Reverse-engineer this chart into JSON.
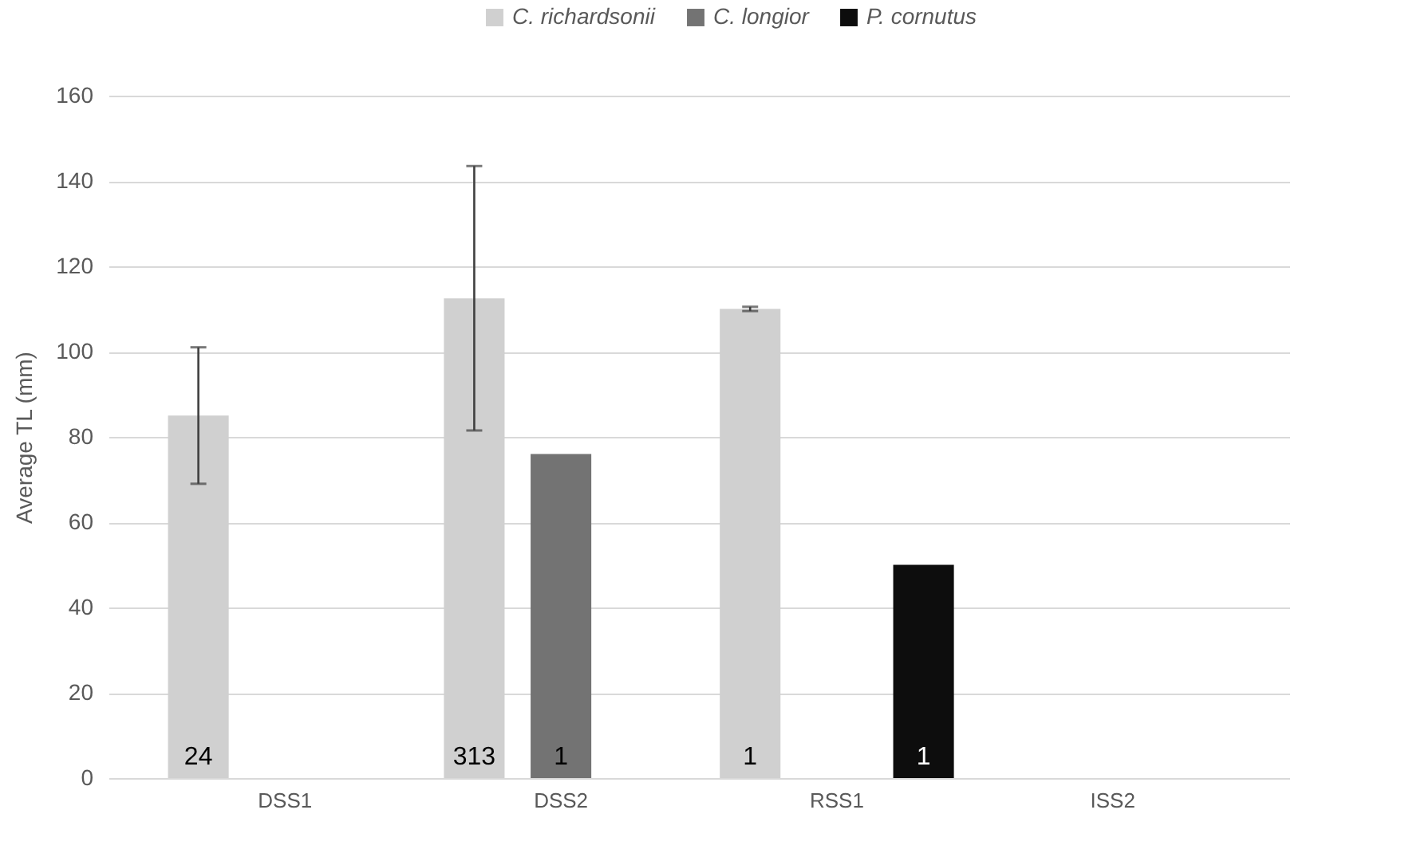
{
  "chart_data": {
    "type": "bar",
    "ylabel": "Average TL (mm)",
    "categories": [
      "DSS1",
      "DSS2",
      "RSS1",
      "ISS2"
    ],
    "series": [
      {
        "name": "C. richardsonii",
        "color": "#d0d0d0",
        "values": [
          85,
          112.5,
          110,
          null
        ],
        "errors": [
          16,
          31,
          0.5,
          null
        ]
      },
      {
        "name": "C. longior",
        "color": "#737373",
        "values": [
          null,
          76,
          null,
          null
        ]
      },
      {
        "name": "P. cornutus",
        "color": "#0d0d0d",
        "values": [
          null,
          null,
          50,
          null
        ]
      }
    ],
    "annotations": [
      "24",
      "313",
      "1",
      "1",
      "1"
    ],
    "ylim": [
      0,
      160
    ],
    "yticks": [
      0,
      20,
      40,
      60,
      80,
      100,
      120,
      140,
      160
    ],
    "grid": "y",
    "legend": "top"
  }
}
